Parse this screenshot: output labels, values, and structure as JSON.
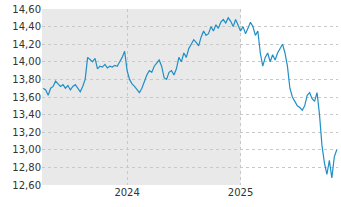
{
  "chart_data": {
    "type": "line",
    "color": "#1f8fc6",
    "grid": true,
    "categories": [
      null,
      null,
      null,
      null,
      null,
      null,
      null,
      null,
      null,
      null,
      null,
      null,
      null,
      null,
      null,
      null,
      null,
      null,
      null,
      null,
      null,
      null,
      null,
      null,
      null,
      null,
      null,
      null,
      null,
      null,
      null,
      null,
      null,
      null,
      "2024",
      null,
      null,
      null,
      null,
      null,
      null,
      null,
      null,
      null,
      null,
      null,
      null,
      null,
      null,
      null,
      null,
      null,
      null,
      null,
      null,
      null,
      null,
      null,
      null,
      null,
      null,
      null,
      null,
      null,
      null,
      null,
      null,
      null,
      null,
      null,
      null,
      null,
      null,
      null,
      null,
      null,
      null,
      null,
      null,
      null,
      "2025",
      null,
      null,
      null,
      null,
      null,
      null,
      null,
      null,
      null,
      null,
      null,
      null,
      null,
      null,
      null,
      null,
      null,
      null,
      null,
      null,
      null,
      null,
      null,
      null,
      null,
      null,
      null,
      null,
      null,
      null,
      null,
      null,
      null,
      null,
      null,
      null,
      null,
      null,
      null
    ],
    "values": [
      13.7,
      13.68,
      13.62,
      13.7,
      13.72,
      13.78,
      13.75,
      13.72,
      13.74,
      13.7,
      13.73,
      13.68,
      13.72,
      13.74,
      13.7,
      13.66,
      13.72,
      13.8,
      14.05,
      14.02,
      14.0,
      14.04,
      13.92,
      13.95,
      13.94,
      13.97,
      13.93,
      13.95,
      13.94,
      13.96,
      13.95,
      14.0,
      14.05,
      14.12,
      13.9,
      13.8,
      13.75,
      13.72,
      13.68,
      13.65,
      13.7,
      13.78,
      13.85,
      13.9,
      13.88,
      13.95,
      13.98,
      14.02,
      13.95,
      13.82,
      13.8,
      13.88,
      13.9,
      13.85,
      13.92,
      14.05,
      14.0,
      14.1,
      14.05,
      14.15,
      14.2,
      14.25,
      14.22,
      14.18,
      14.28,
      14.35,
      14.3,
      14.32,
      14.4,
      14.35,
      14.42,
      14.38,
      14.45,
      14.48,
      14.44,
      14.5,
      14.46,
      14.4,
      14.48,
      14.42,
      14.35,
      14.4,
      14.32,
      14.38,
      14.45,
      14.4,
      14.3,
      14.35,
      14.1,
      13.95,
      14.05,
      14.1,
      14.0,
      14.08,
      14.02,
      14.1,
      14.15,
      14.2,
      14.1,
      13.95,
      13.7,
      13.6,
      13.55,
      13.5,
      13.48,
      13.45,
      13.5,
      13.62,
      13.65,
      13.58,
      13.55,
      13.65,
      13.4,
      13.05,
      12.85,
      12.72,
      12.88,
      12.68,
      12.92,
      13.0
    ],
    "ylim": [
      12.6,
      14.6
    ],
    "yticks": [
      {
        "value": 12.6,
        "label": "12,60"
      },
      {
        "value": 12.8,
        "label": "12,80"
      },
      {
        "value": 13.0,
        "label": "13,00"
      },
      {
        "value": 13.2,
        "label": "13,20"
      },
      {
        "value": 13.4,
        "label": "13,40"
      },
      {
        "value": 13.6,
        "label": "13,60"
      },
      {
        "value": 13.8,
        "label": "13,80"
      },
      {
        "value": 14.0,
        "label": "14,00"
      },
      {
        "value": 14.2,
        "label": "14,20"
      },
      {
        "value": 14.4,
        "label": "14,40"
      },
      {
        "value": 14.6,
        "label": "14,60"
      }
    ]
  }
}
